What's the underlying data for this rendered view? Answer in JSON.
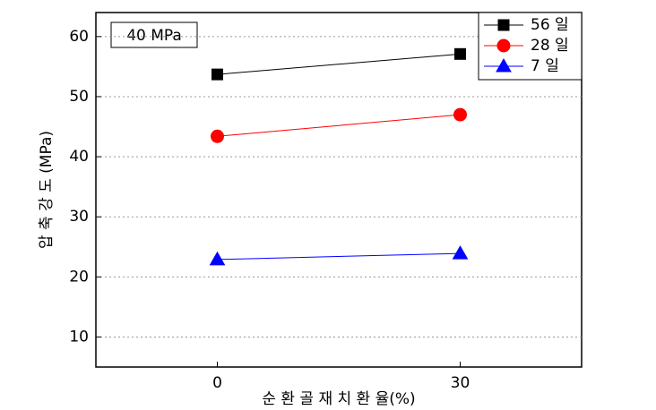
{
  "chart_data": {
    "type": "line",
    "annotation": "40 MPa",
    "x_label": "순 환 골 재 치 환 율(%)",
    "y_label": "압 축 강 도 (MPa)",
    "x": [
      0,
      30
    ],
    "series": [
      {
        "name": "56 일",
        "color": "#000000",
        "marker": "square",
        "values": [
          53.7,
          57.1
        ]
      },
      {
        "name": "28 일",
        "color": "#ff0000",
        "marker": "circle",
        "values": [
          43.4,
          47.0
        ]
      },
      {
        "name": "7 일",
        "color": "#0000ff",
        "marker": "triangle",
        "values": [
          22.9,
          23.9
        ]
      }
    ],
    "xlim": [
      -15,
      45
    ],
    "xticks": [
      0,
      30
    ],
    "ylim": [
      5,
      64
    ],
    "yticks": [
      10,
      20,
      30,
      40,
      50,
      60
    ],
    "grid": true,
    "legend": "upper right"
  }
}
